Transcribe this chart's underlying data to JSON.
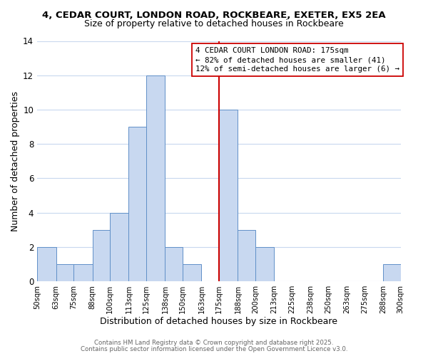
{
  "title_line1": "4, CEDAR COURT, LONDON ROAD, ROCKBEARE, EXETER, EX5 2EA",
  "title_line2": "Size of property relative to detached houses in Rockbeare",
  "xlabel": "Distribution of detached houses by size in Rockbeare",
  "ylabel": "Number of detached properties",
  "bar_edges": [
    50,
    63,
    75,
    88,
    100,
    113,
    125,
    138,
    150,
    163,
    175,
    188,
    200,
    213,
    225,
    238,
    250,
    263,
    275,
    288,
    300
  ],
  "bar_heights": [
    2,
    1,
    1,
    3,
    4,
    9,
    12,
    2,
    1,
    0,
    10,
    3,
    2,
    0,
    0,
    0,
    0,
    0,
    0,
    1
  ],
  "bar_color": "#c8d8f0",
  "bar_edgecolor": "#6090c8",
  "vline_x": 175,
  "vline_color": "#cc0000",
  "ylim": [
    0,
    14
  ],
  "yticks": [
    0,
    2,
    4,
    6,
    8,
    10,
    12,
    14
  ],
  "annotation_title": "4 CEDAR COURT LONDON ROAD: 175sqm",
  "annotation_line2": "← 82% of detached houses are smaller (41)",
  "annotation_line3": "12% of semi-detached houses are larger (6) →",
  "footer_line1": "Contains HM Land Registry data © Crown copyright and database right 2025.",
  "footer_line2": "Contains public sector information licensed under the Open Government Licence v3.0.",
  "background_color": "#ffffff",
  "grid_color": "#c8d8ee",
  "tick_labels": [
    "50sqm",
    "63sqm",
    "75sqm",
    "88sqm",
    "100sqm",
    "113sqm",
    "125sqm",
    "138sqm",
    "150sqm",
    "163sqm",
    "175sqm",
    "188sqm",
    "200sqm",
    "213sqm",
    "225sqm",
    "238sqm",
    "250sqm",
    "263sqm",
    "275sqm",
    "288sqm",
    "300sqm"
  ]
}
